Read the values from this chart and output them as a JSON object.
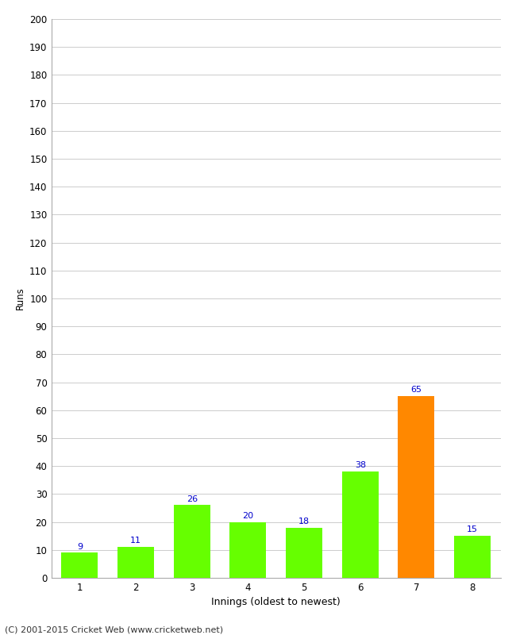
{
  "categories": [
    "1",
    "2",
    "3",
    "4",
    "5",
    "6",
    "7",
    "8"
  ],
  "values": [
    9,
    11,
    26,
    20,
    18,
    38,
    65,
    15
  ],
  "bar_colors": [
    "#66ff00",
    "#66ff00",
    "#66ff00",
    "#66ff00",
    "#66ff00",
    "#66ff00",
    "#ff8800",
    "#66ff00"
  ],
  "xlabel": "Innings (oldest to newest)",
  "ylabel": "Runs",
  "ylim": [
    0,
    200
  ],
  "yticks": [
    0,
    10,
    20,
    30,
    40,
    50,
    60,
    70,
    80,
    90,
    100,
    110,
    120,
    130,
    140,
    150,
    160,
    170,
    180,
    190,
    200
  ],
  "label_color": "#0000cc",
  "label_fontsize": 8,
  "axis_tick_fontsize": 8.5,
  "xlabel_fontsize": 9,
  "ylabel_fontsize": 8.5,
  "footer_text": "(C) 2001-2015 Cricket Web (www.cricketweb.net)",
  "background_color": "#ffffff",
  "grid_color": "#cccccc",
  "spine_color": "#aaaaaa"
}
